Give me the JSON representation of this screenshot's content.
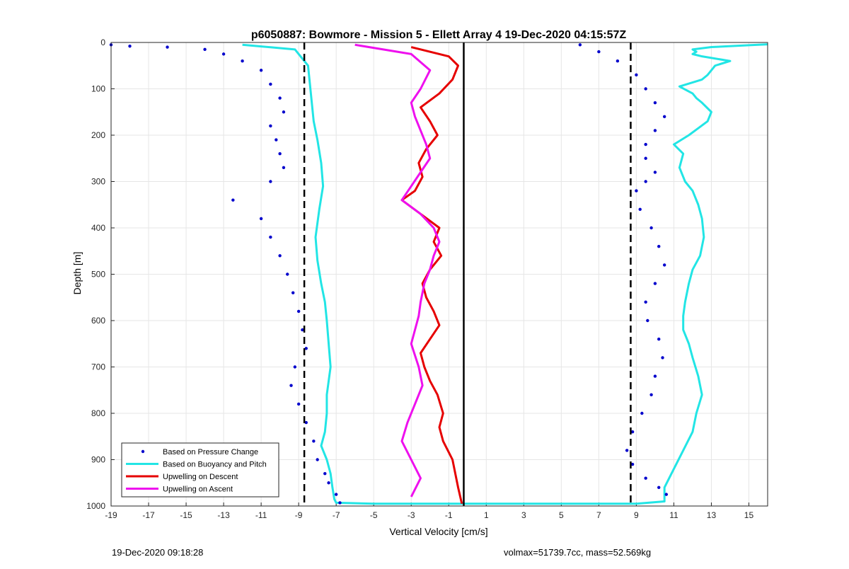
{
  "chart_data": {
    "type": "scatter",
    "title": "p6050887: Bowmore - Mission 5 - Ellett Array 4 19-Dec-2020 04:15:57Z",
    "xlabel": "Vertical Velocity [cm/s]",
    "ylabel": "Depth [m]",
    "xlim": [
      -19,
      16
    ],
    "ylim": [
      1000,
      0
    ],
    "y_reversed": true,
    "grid": true,
    "x_ticks": [
      "-19",
      "-17",
      "-15",
      "-13",
      "-11",
      "-9",
      "-7",
      "-5",
      "-3",
      "-1",
      "1",
      "3",
      "5",
      "7",
      "9",
      "11",
      "13",
      "15"
    ],
    "y_ticks": [
      "0",
      "100",
      "200",
      "300",
      "400",
      "500",
      "600",
      "700",
      "800",
      "900",
      "1000"
    ],
    "legend": {
      "position": "bottom-left",
      "entries": [
        {
          "label": "Based on Pressure Change",
          "color": "#0000cc",
          "style": "dot"
        },
        {
          "label": "Based on Buoyancy and Pitch",
          "color": "#22e5e5",
          "style": "line"
        },
        {
          "label": "Upwelling on Descent",
          "color": "#e60000",
          "style": "line"
        },
        {
          "label": "Upwelling on Ascent",
          "color": "#ee10ee",
          "style": "line"
        }
      ]
    },
    "reference_lines": [
      {
        "style": "solid",
        "x": -0.2,
        "color": "#000000"
      },
      {
        "style": "dashed",
        "x": -8.7,
        "color": "#000000"
      },
      {
        "style": "dashed",
        "x": 8.7,
        "color": "#000000"
      }
    ],
    "series": [
      {
        "color": "#22e5e5",
        "x": [
          -12,
          -9.2,
          -8.5,
          -8.4,
          -8.3,
          -8.2,
          -8.0,
          -7.8,
          -7.7,
          -7.9,
          -8.1,
          -8.0,
          -7.8,
          -7.6,
          -7.5,
          -7.4,
          -7.3,
          -7.4,
          -7.5,
          -7.5,
          -7.6,
          -7.8,
          -7.5,
          -7.3,
          -7.2,
          -7.1,
          -7.0,
          -5.0,
          -3.0,
          2.0,
          6.0,
          9.0,
          10.5,
          10.5
        ],
        "y": [
          5,
          15,
          50,
          90,
          130,
          170,
          210,
          260,
          310,
          360,
          420,
          470,
          520,
          560,
          600,
          650,
          700,
          730,
          760,
          800,
          840,
          870,
          900,
          930,
          960,
          985,
          993,
          995,
          995,
          995,
          995,
          995,
          990,
          985
        ]
      },
      {
        "color": "#22e5e5",
        "x": [
          10.5,
          10.5,
          11,
          11.5,
          12,
          12.2,
          12.5,
          12.3,
          12.0,
          11.8,
          11.5,
          11.5,
          11.6,
          11.8,
          12.0,
          12.4,
          12.6,
          12.5,
          12.3,
          12.0,
          11.6,
          11.3,
          11.5,
          11.0,
          11.8,
          12.3,
          12.8,
          13.0,
          12.5,
          12.2,
          12.0,
          11.3,
          12.5,
          12.8,
          13.0,
          13.2,
          14.0,
          12.5,
          12.0,
          12.2,
          12.0,
          13.0,
          15.0,
          16.0
        ],
        "y": [
          985,
          960,
          920,
          880,
          840,
          800,
          760,
          720,
          680,
          650,
          620,
          590,
          560,
          520,
          490,
          460,
          420,
          380,
          350,
          320,
          300,
          270,
          240,
          220,
          200,
          185,
          170,
          150,
          130,
          120,
          110,
          95,
          80,
          70,
          60,
          50,
          40,
          30,
          25,
          20,
          15,
          10,
          6,
          4
        ]
      },
      {
        "color": "#e60000",
        "x": [
          -3.0,
          -1.0,
          -0.5,
          -0.8,
          -1.5,
          -2.5,
          -2.0,
          -1.6,
          -2.2,
          -2.6,
          -2.4,
          -2.8,
          -3.5,
          -2.5,
          -1.5,
          -1.8,
          -1.4,
          -2.0,
          -2.4,
          -2.2,
          -1.8,
          -1.5,
          -2.0,
          -2.5,
          -2.3,
          -2.0,
          -1.6,
          -1.3,
          -1.5,
          -1.3,
          -0.8,
          -0.5,
          -0.3
        ],
        "y": [
          10,
          30,
          50,
          80,
          110,
          140,
          170,
          200,
          230,
          260,
          290,
          320,
          340,
          370,
          400,
          430,
          460,
          490,
          520,
          550,
          580,
          610,
          640,
          670,
          700,
          730,
          760,
          800,
          830,
          860,
          900,
          960,
          995
        ]
      },
      {
        "color": "#ee10ee",
        "x": [
          -6.0,
          -3.0,
          -2.0,
          -2.5,
          -3.0,
          -2.8,
          -2.5,
          -2.2,
          -2.0,
          -2.5,
          -3.0,
          -3.5,
          -2.5,
          -1.8,
          -1.5,
          -1.8,
          -2.0,
          -2.3,
          -2.5,
          -2.6,
          -2.8,
          -3.0,
          -2.6,
          -2.4,
          -2.8,
          -3.2,
          -3.5,
          -3.0,
          -2.5,
          -3.0
        ],
        "y": [
          5,
          25,
          60,
          100,
          130,
          160,
          190,
          220,
          250,
          280,
          310,
          340,
          370,
          400,
          430,
          460,
          490,
          520,
          560,
          590,
          620,
          650,
          700,
          740,
          780,
          820,
          860,
          900,
          940,
          980
        ]
      },
      {
        "color": "#0000cc",
        "x": [
          -19,
          -18,
          -16,
          -14,
          -13,
          -12,
          -11,
          -10.5,
          -10,
          -9.8,
          -10.5,
          -10.2,
          -10,
          -9.8,
          -10.5,
          -12.5,
          -11,
          -10.5,
          -10,
          -9.6,
          -9.3,
          -9.0,
          -8.8,
          -8.6,
          -9.2,
          -9.4,
          -9.0,
          -8.6,
          -8.2,
          -8.0,
          -7.6,
          -7.4,
          -7.0,
          -6.8
        ],
        "y": [
          5,
          8,
          10,
          15,
          25,
          40,
          60,
          90,
          120,
          150,
          180,
          210,
          240,
          270,
          300,
          340,
          380,
          420,
          460,
          500,
          540,
          580,
          620,
          660,
          700,
          740,
          780,
          820,
          860,
          900,
          930,
          950,
          975,
          993
        ]
      },
      {
        "color": "#0000cc",
        "x": [
          6,
          7,
          8,
          9,
          9.5,
          10,
          10.5,
          10,
          9.5,
          9.5,
          10,
          9.5,
          9,
          9.2,
          9.8,
          10.2,
          10.5,
          10,
          9.5,
          9.6,
          10.2,
          10.4,
          10.0,
          9.8,
          9.3,
          8.8,
          8.5,
          8.8,
          9.5,
          10.2,
          10.6
        ],
        "y": [
          5,
          20,
          40,
          70,
          100,
          130,
          160,
          190,
          220,
          250,
          280,
          300,
          320,
          360,
          400,
          440,
          480,
          520,
          560,
          600,
          640,
          680,
          720,
          760,
          800,
          840,
          880,
          910,
          940,
          960,
          975
        ]
      }
    ],
    "footer_left": "19-Dec-2020 09:18:28",
    "footer_right": "volmax=51739.7cc, mass=52.569kg"
  }
}
